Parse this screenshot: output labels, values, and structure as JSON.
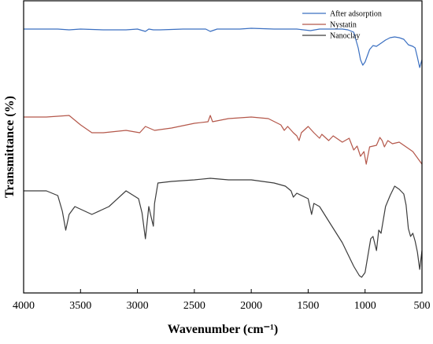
{
  "chart_data": {
    "type": "line",
    "title": "",
    "xlabel": "Wavenumber (cm⁻¹)",
    "ylabel": "Transmittance (%)",
    "xlim": [
      4000,
      500
    ],
    "x_reversed": true,
    "y_ticks_shown": false,
    "x_ticks": [
      4000,
      3500,
      3000,
      2500,
      2000,
      1500,
      1000,
      500
    ],
    "x_tick_labels": [
      "4000",
      "3500",
      "3000",
      "2500",
      "2000",
      "1500",
      "1000",
      "500"
    ],
    "legend_position": "top-right",
    "grid": false,
    "series": [
      {
        "name": "After adsorption",
        "color": "#3a6fc1",
        "x": [
          4000,
          3700,
          3600,
          3500,
          3300,
          3100,
          3000,
          2930,
          2900,
          2860,
          2800,
          2600,
          2400,
          2360,
          2300,
          2100,
          2000,
          1800,
          1600,
          1480,
          1400,
          1300,
          1200,
          1150,
          1100,
          1060,
          1040,
          1020,
          1000,
          960,
          930,
          900,
          860,
          820,
          780,
          740,
          700,
          660,
          620,
          580,
          560,
          540,
          520,
          500
        ],
        "y": [
          36,
          36,
          37,
          36,
          37,
          37,
          36,
          39,
          36,
          37,
          37,
          36,
          36,
          39,
          36,
          36,
          35,
          36,
          36,
          38,
          36,
          36,
          36,
          37,
          40,
          60,
          75,
          82,
          78,
          62,
          57,
          58,
          54,
          50,
          47,
          46,
          47,
          49,
          56,
          58,
          60,
          72,
          85,
          75
        ]
      },
      {
        "name": "Nystatin",
        "color": "#b4574a",
        "x": [
          4000,
          3800,
          3700,
          3600,
          3500,
          3400,
          3300,
          3100,
          2980,
          2930,
          2850,
          2700,
          2500,
          2380,
          2360,
          2340,
          2200,
          2000,
          1850,
          1740,
          1710,
          1680,
          1630,
          1600,
          1580,
          1560,
          1500,
          1450,
          1400,
          1380,
          1320,
          1280,
          1200,
          1140,
          1100,
          1070,
          1040,
          1010,
          990,
          960,
          900,
          870,
          850,
          830,
          800,
          760,
          700,
          640,
          580,
          540,
          500
        ],
        "y": [
          148,
          148,
          147,
          146,
          158,
          168,
          168,
          165,
          168,
          160,
          165,
          162,
          156,
          154,
          146,
          154,
          150,
          148,
          150,
          158,
          165,
          160,
          168,
          172,
          178,
          168,
          160,
          168,
          175,
          170,
          178,
          172,
          180,
          175,
          190,
          185,
          198,
          192,
          208,
          186,
          184,
          174,
          178,
          186,
          178,
          182,
          180,
          186,
          192,
          200,
          208
        ]
      },
      {
        "name": "Nanoclay",
        "color": "#3c3c3c",
        "x": [
          4000,
          3800,
          3700,
          3660,
          3630,
          3600,
          3550,
          3400,
          3250,
          3100,
          2990,
          2960,
          2930,
          2900,
          2880,
          2860,
          2850,
          2820,
          2700,
          2500,
          2360,
          2200,
          2000,
          1800,
          1700,
          1650,
          1630,
          1600,
          1500,
          1470,
          1450,
          1400,
          1300,
          1200,
          1100,
          1050,
          1030,
          1000,
          950,
          930,
          900,
          880,
          860,
          820,
          780,
          740,
          700,
          660,
          640,
          620,
          600,
          580,
          560,
          540,
          520,
          500
        ],
        "y": [
          242,
          242,
          248,
          268,
          292,
          272,
          262,
          272,
          262,
          242,
          252,
          270,
          303,
          262,
          275,
          287,
          258,
          232,
          230,
          228,
          226,
          228,
          228,
          232,
          236,
          242,
          250,
          245,
          252,
          272,
          258,
          262,
          285,
          308,
          338,
          350,
          352,
          346,
          303,
          300,
          318,
          292,
          296,
          262,
          248,
          236,
          240,
          246,
          260,
          290,
          300,
          296,
          306,
          320,
          342,
          318
        ]
      }
    ]
  }
}
